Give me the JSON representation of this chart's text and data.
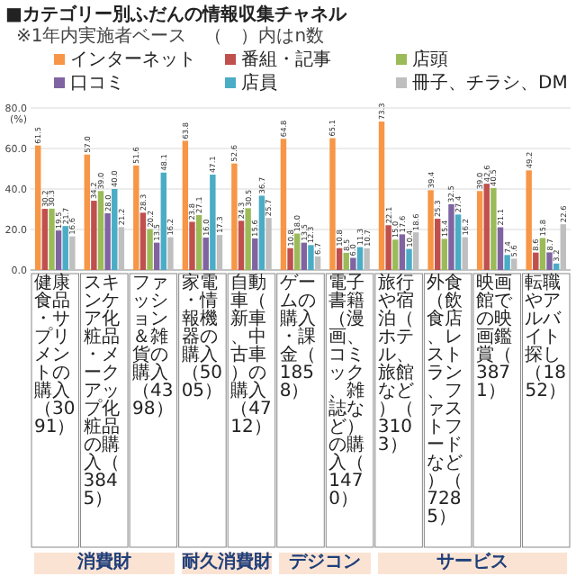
{
  "chart_data": {
    "type": "bar",
    "title": "■カテゴリー別ふだんの情報収集チャネル",
    "subtitle": "※1年内実施者ベース　（　）内はn数",
    "ylabel": "(%)",
    "categories": [
      "健康食品・サプリメントの購入（3091）",
      "スキンケア化粧品・メークアップ化粧品の購入（3845）",
      "ファッション＆雑貨の購入（4398）",
      "家電・情報機器の購入（5005）",
      "自動車（新車、中古車）の購入（4712）",
      "ゲームの購入・課金（1858）",
      "電子書籍（漫画、コミック、雑誌など）の購入（1470）",
      "旅行や宿泊（ホテル、旅館など）（3103）",
      "外食（飲食店、レストラン、ファストフードなど）（7285）",
      "映画館での映画鑑賞（3871）",
      "転職やアルバイト探し（1852）"
    ],
    "series": [
      {
        "name": "インターネット",
        "color": "#f79646",
        "values": [
          61.5,
          57.0,
          51.6,
          63.8,
          52.6,
          64.8,
          65.1,
          73.3,
          39.4,
          39.0,
          49.2
        ],
        "value_labels": [
          "61.5",
          "57.0",
          "51.6",
          "63.8",
          "52.6",
          "64.8",
          "65.1",
          "73.3",
          "39.4",
          "39.0",
          "49.2"
        ]
      },
      {
        "name": "番組・記事",
        "color": "#c0504d",
        "values": [
          30.2,
          34.2,
          28.3,
          23.8,
          24.3,
          10.8,
          10.8,
          22.1,
          25.3,
          42.6,
          8.6
        ],
        "value_labels": [
          "30.2",
          "34.2",
          "28.3",
          "23.8",
          "24.3",
          "10.8",
          "10.8",
          "22.1",
          "25.3",
          "42.6",
          "8.6"
        ]
      },
      {
        "name": "店頭",
        "color": "#9bbb59",
        "values": [
          30.3,
          39.0,
          20.2,
          27.1,
          30.5,
          18.0,
          8.5,
          15.0,
          15.4,
          40.5,
          15.8
        ],
        "value_labels": [
          "30.3",
          "39.0",
          "20.2",
          "27.1",
          "30.5",
          "18.0",
          "8.5",
          "15.0",
          "15.4",
          "40.5",
          "15.8"
        ]
      },
      {
        "name": "口コミ",
        "color": "#8064a2",
        "values": [
          19.5,
          28.0,
          13.5,
          16.0,
          15.6,
          13.5,
          6.0,
          17.6,
          32.5,
          21.1,
          8.7
        ],
        "value_labels": [
          "19.5",
          "28.0",
          "13.5",
          "16.0",
          "15.6",
          "13.5",
          "6.0",
          "17.6",
          "32.5",
          "21.1",
          "8.7"
        ]
      },
      {
        "name": "店員",
        "color": "#4bacc6",
        "values": [
          21.7,
          40.0,
          48.1,
          47.1,
          36.7,
          12.3,
          11.3,
          10.4,
          27.4,
          7.4,
          3.2
        ],
        "value_labels": [
          "21.7",
          "40.0",
          "48.1",
          "47.1",
          "36.7",
          "12.3",
          "11.3",
          "10.4",
          "27.4",
          "7.4",
          "3.2"
        ]
      },
      {
        "name": "冊子、チラシ、DM",
        "color": "#bfbfbf",
        "values": [
          16.6,
          21.2,
          16.2,
          17.3,
          25.7,
          6.7,
          10.7,
          18.6,
          16.2,
          5.6,
          22.6
        ],
        "value_labels": [
          "16.6",
          "21.2",
          "16.2",
          "17.3",
          "25.7",
          "6.7",
          "10.7",
          "18.6",
          "16.2",
          "5.6",
          "22.6"
        ]
      }
    ],
    "ylim": [
      0,
      80
    ],
    "yticks": [
      {
        "value": 0,
        "label": "0.0"
      },
      {
        "value": 20,
        "label": "20.0"
      },
      {
        "value": 40,
        "label": "40.0"
      },
      {
        "value": 60,
        "label": "60.0"
      },
      {
        "value": 80,
        "label": "80.0"
      }
    ],
    "grid": "y",
    "legend": "top",
    "annotations": [
      "消費財",
      "耐久消費財",
      "デジコン",
      "サービス"
    ]
  }
}
